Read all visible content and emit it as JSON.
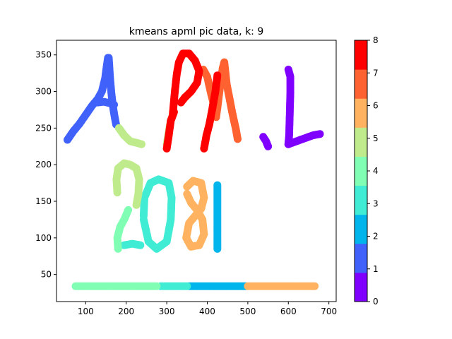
{
  "chart_data": {
    "type": "scatter",
    "title": "kmeans apml pic data, k: 9",
    "xlabel": "",
    "ylabel": "",
    "xlim": [
      28,
      718
    ],
    "ylim": [
      13,
      370
    ],
    "xticks": [
      100,
      200,
      300,
      400,
      500,
      600,
      700
    ],
    "yticks": [
      50,
      100,
      150,
      200,
      250,
      300,
      350
    ],
    "grid": false,
    "colorbar": {
      "range": [
        0,
        8
      ],
      "ticks": [
        0,
        1,
        2,
        3,
        4,
        5,
        6,
        7,
        8
      ],
      "colors": [
        "#8000ff",
        "#4062fa",
        "#00b5eb",
        "#40ecd4",
        "#80ffb4",
        "#c0eb8d",
        "#ffb360",
        "#ff6231",
        "#ff0000"
      ]
    },
    "clusters": [
      {
        "label": 0,
        "color": "#8000ff",
        "strokes": [
          [
            [
              600,
              330
            ],
            [
              605,
              320
            ],
            [
              605,
              300
            ],
            [
              604,
              280
            ],
            [
              603,
              260
            ],
            [
              602,
              240
            ],
            [
              600,
              228
            ]
          ],
          [
            [
              600,
              228
            ],
            [
              620,
              232
            ],
            [
              640,
              236
            ],
            [
              660,
              240
            ],
            [
              678,
              242
            ]
          ],
          [
            [
              538,
              238
            ],
            [
              545,
              232
            ],
            [
              550,
              225
            ]
          ]
        ]
      },
      {
        "label": 1,
        "color": "#4062fa",
        "strokes": [
          [
            [
              55,
              234
            ],
            [
              70,
              246
            ],
            [
              85,
              256
            ],
            [
              100,
              268
            ],
            [
              115,
              280
            ],
            [
              130,
              290
            ],
            [
              140,
              300
            ],
            [
              148,
              318
            ],
            [
              152,
              335
            ],
            [
              155,
              346
            ]
          ],
          [
            [
              157,
              346
            ],
            [
              160,
              320
            ],
            [
              163,
              300
            ],
            [
              166,
              285
            ],
            [
              170,
              270
            ],
            [
              175,
              255
            ]
          ],
          [
            [
              130,
              285
            ],
            [
              145,
              286
            ],
            [
              160,
              284
            ],
            [
              170,
              282
            ]
          ]
        ]
      },
      {
        "label": 2,
        "color": "#00b5eb",
        "strokes": [
          [
            [
              425,
              172
            ],
            [
              425,
              150
            ],
            [
              425,
              125
            ],
            [
              425,
              100
            ],
            [
              425,
              85
            ]
          ],
          [
            [
              355,
              34
            ],
            [
              380,
              34
            ],
            [
              405,
              34
            ],
            [
              430,
              34
            ],
            [
              455,
              34
            ],
            [
              475,
              34
            ],
            [
              495,
              34
            ]
          ]
        ]
      },
      {
        "label": 3,
        "color": "#40ecd4",
        "strokes": [
          [
            [
              243,
              125
            ],
            [
              255,
              95
            ],
            [
              275,
              85
            ],
            [
              300,
              95
            ],
            [
              310,
              125
            ],
            [
              312,
              155
            ],
            [
              305,
              175
            ],
            [
              280,
              180
            ],
            [
              260,
              175
            ],
            [
              245,
              155
            ],
            [
              243,
              130
            ]
          ],
          [
            [
              195,
              90
            ],
            [
              215,
              92
            ],
            [
              235,
              90
            ]
          ],
          [
            [
              285,
              34
            ],
            [
              310,
              34
            ],
            [
              330,
              34
            ],
            [
              350,
              34
            ]
          ]
        ]
      },
      {
        "label": 4,
        "color": "#80ffb4",
        "strokes": [
          [
            [
              75,
              34
            ],
            [
              100,
              34
            ],
            [
              130,
              34
            ],
            [
              160,
              34
            ],
            [
              190,
              34
            ],
            [
              220,
              34
            ],
            [
              250,
              34
            ],
            [
              275,
              34
            ]
          ],
          [
            [
              180,
              85
            ],
            [
              178,
              100
            ],
            [
              185,
              115
            ],
            [
              195,
              125
            ],
            [
              205,
              138
            ]
          ],
          [
            [
              182,
              250
            ],
            [
              195,
              240
            ]
          ]
        ]
      },
      {
        "label": 5,
        "color": "#c0eb8d",
        "strokes": [
          [
            [
              178,
              162
            ],
            [
              176,
              180
            ],
            [
              180,
              195
            ],
            [
              195,
              202
            ],
            [
              210,
              200
            ],
            [
              225,
              195
            ],
            [
              232,
              180
            ],
            [
              230,
              160
            ],
            [
              225,
              145
            ]
          ],
          [
            [
              182,
              250
            ],
            [
              195,
              240
            ],
            [
              210,
              232
            ],
            [
              225,
              230
            ],
            [
              238,
              228
            ]
          ],
          [
            [
              300,
              228
            ],
            [
              305,
              245
            ],
            [
              310,
              260
            ],
            [
              315,
              268
            ]
          ]
        ]
      },
      {
        "label": 6,
        "color": "#ffb360",
        "strokes": [
          [
            [
              350,
              170
            ],
            [
              365,
              178
            ],
            [
              385,
              175
            ],
            [
              392,
              155
            ],
            [
              385,
              140
            ],
            [
              370,
              130
            ],
            [
              355,
              120
            ],
            [
              348,
              100
            ],
            [
              360,
              88
            ],
            [
              380,
              90
            ],
            [
              392,
              105
            ],
            [
              388,
              125
            ],
            [
              375,
              138
            ],
            [
              360,
              148
            ],
            [
              350,
              160
            ]
          ],
          [
            [
              500,
              34
            ],
            [
              530,
              34
            ],
            [
              560,
              34
            ],
            [
              590,
              34
            ],
            [
              620,
              34
            ],
            [
              650,
              34
            ],
            [
              665,
              34
            ]
          ]
        ]
      },
      {
        "label": 7,
        "color": "#ff6231",
        "strokes": [
          [
            [
              390,
              330
            ],
            [
              400,
              320
            ],
            [
              408,
              300
            ],
            [
              416,
              282
            ],
            [
              422,
              265
            ],
            [
              430,
              300
            ],
            [
              438,
              332
            ],
            [
              442,
              340
            ],
            [
              448,
              310
            ],
            [
              455,
              290
            ],
            [
              462,
              270
            ],
            [
              470,
              250
            ],
            [
              475,
              235
            ]
          ]
        ]
      },
      {
        "label": 8,
        "color": "#ff0000",
        "strokes": [
          [
            [
              315,
              270
            ],
            [
              320,
              300
            ],
            [
              325,
              325
            ],
            [
              330,
              340
            ],
            [
              340,
              352
            ],
            [
              355,
              352
            ],
            [
              370,
              342
            ],
            [
              380,
              328
            ],
            [
              375,
              312
            ],
            [
              360,
              300
            ],
            [
              345,
              292
            ],
            [
              335,
              285
            ]
          ],
          [
            [
              300,
              222
            ],
            [
              305,
              240
            ],
            [
              310,
              260
            ],
            [
              318,
              272
            ]
          ],
          [
            [
              392,
              222
            ],
            [
              398,
              240
            ],
            [
              405,
              255
            ],
            [
              412,
              275
            ],
            [
              420,
              300
            ],
            [
              425,
              322
            ]
          ]
        ]
      }
    ]
  }
}
